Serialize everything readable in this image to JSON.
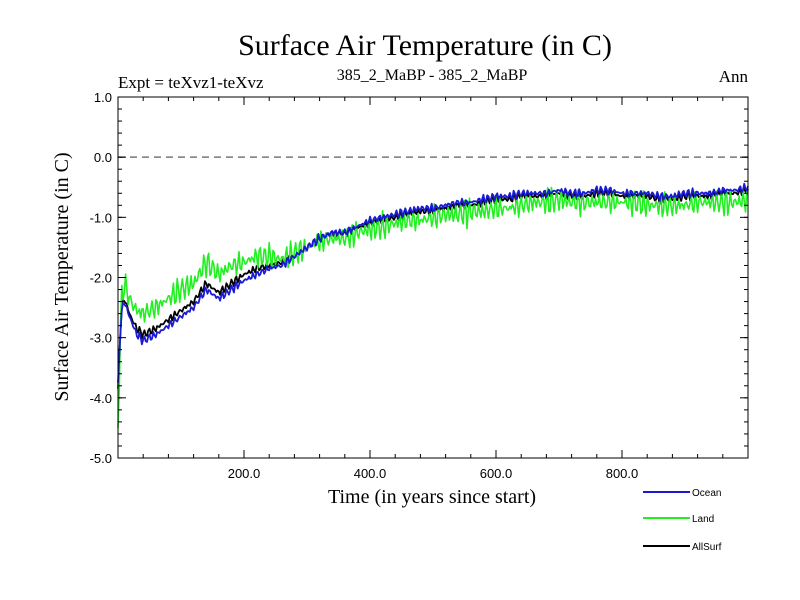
{
  "chart_data": {
    "type": "line",
    "title": "Surface Air Temperature (in C)",
    "subtitle_left": "Expt = teXvz1-teXvz",
    "subtitle_center": "385_2_MaBP - 385_2_MaBP",
    "subtitle_right": "Ann",
    "xlabel": "Time (in years since start)",
    "ylabel": "Surface Air Temperature (in C)",
    "xlim": [
      0,
      1000
    ],
    "ylim": [
      -5.0,
      1.0
    ],
    "xticks": [
      200,
      400,
      600,
      800
    ],
    "xtick_labels": [
      "200.0",
      "400.0",
      "600.0",
      "800.0"
    ],
    "yticks": [
      -5,
      -4,
      -3,
      -2,
      -1,
      0,
      1
    ],
    "ytick_labels": [
      "-5.0",
      "-4.0",
      "-3.0",
      "-2.0",
      "-1.0",
      "0.0",
      "1.0"
    ],
    "reference_line": 0.0,
    "grid": false,
    "legend_position": "bottom-right",
    "series": [
      {
        "name": "Ocean",
        "color": "#1a1ad4",
        "x": [
          0,
          5,
          10,
          20,
          30,
          40,
          50,
          60,
          80,
          100,
          120,
          140,
          160,
          180,
          200,
          220,
          240,
          260,
          280,
          300,
          320,
          340,
          360,
          380,
          400,
          420,
          440,
          460,
          480,
          500,
          520,
          540,
          560,
          580,
          600,
          620,
          640,
          660,
          680,
          700,
          720,
          740,
          760,
          780,
          800,
          820,
          840,
          860,
          880,
          900,
          920,
          940,
          960,
          980,
          1000
        ],
        "values": [
          -3.8,
          -2.6,
          -2.4,
          -2.7,
          -2.95,
          -3.05,
          -3.0,
          -2.95,
          -2.8,
          -2.65,
          -2.5,
          -2.2,
          -2.35,
          -2.2,
          -2.05,
          -1.95,
          -1.85,
          -1.8,
          -1.65,
          -1.5,
          -1.35,
          -1.25,
          -1.25,
          -1.15,
          -1.05,
          -1.0,
          -0.95,
          -0.9,
          -0.85,
          -0.85,
          -0.8,
          -0.75,
          -0.75,
          -0.7,
          -0.65,
          -0.65,
          -0.6,
          -0.6,
          -0.6,
          -0.55,
          -0.6,
          -0.6,
          -0.55,
          -0.55,
          -0.6,
          -0.6,
          -0.6,
          -0.65,
          -0.65,
          -0.6,
          -0.6,
          -0.6,
          -0.55,
          -0.55,
          -0.5
        ]
      },
      {
        "name": "Land",
        "color": "#22ee22",
        "x": [
          0,
          5,
          10,
          20,
          30,
          40,
          50,
          60,
          80,
          100,
          120,
          140,
          160,
          180,
          200,
          220,
          240,
          260,
          280,
          300,
          320,
          340,
          360,
          380,
          400,
          420,
          440,
          460,
          480,
          500,
          520,
          540,
          560,
          580,
          600,
          620,
          640,
          660,
          680,
          700,
          720,
          740,
          760,
          780,
          800,
          820,
          840,
          860,
          880,
          900,
          920,
          940,
          960,
          980,
          1000
        ],
        "values": [
          -4.5,
          -2.4,
          -2.1,
          -2.4,
          -2.55,
          -2.6,
          -2.55,
          -2.5,
          -2.35,
          -2.2,
          -2.1,
          -1.75,
          -1.95,
          -1.8,
          -1.75,
          -1.65,
          -1.65,
          -1.7,
          -1.6,
          -1.5,
          -1.4,
          -1.35,
          -1.35,
          -1.25,
          -1.2,
          -1.15,
          -1.1,
          -1.05,
          -1.05,
          -1.0,
          -0.95,
          -0.95,
          -0.9,
          -0.9,
          -0.85,
          -0.85,
          -0.8,
          -0.75,
          -0.75,
          -0.7,
          -0.75,
          -0.75,
          -0.75,
          -0.75,
          -0.75,
          -0.75,
          -0.8,
          -0.8,
          -0.8,
          -0.8,
          -0.75,
          -0.75,
          -0.75,
          -0.75,
          -0.7
        ]
      },
      {
        "name": "AllSurf",
        "color": "#000000",
        "x": [
          0,
          5,
          10,
          20,
          30,
          40,
          50,
          60,
          80,
          100,
          120,
          140,
          160,
          180,
          200,
          220,
          240,
          260,
          280,
          300,
          320,
          340,
          360,
          380,
          400,
          420,
          440,
          460,
          480,
          500,
          520,
          540,
          560,
          580,
          600,
          620,
          640,
          660,
          680,
          700,
          720,
          740,
          760,
          780,
          800,
          820,
          840,
          860,
          880,
          900,
          920,
          940,
          960,
          980,
          1000
        ],
        "values": [
          -3.9,
          -2.55,
          -2.35,
          -2.65,
          -2.85,
          -2.95,
          -2.9,
          -2.85,
          -2.7,
          -2.55,
          -2.4,
          -2.1,
          -2.25,
          -2.1,
          -1.95,
          -1.85,
          -1.8,
          -1.75,
          -1.65,
          -1.5,
          -1.35,
          -1.27,
          -1.27,
          -1.18,
          -1.1,
          -1.05,
          -1.0,
          -0.95,
          -0.9,
          -0.9,
          -0.85,
          -0.8,
          -0.8,
          -0.75,
          -0.7,
          -0.7,
          -0.65,
          -0.65,
          -0.65,
          -0.6,
          -0.65,
          -0.65,
          -0.6,
          -0.6,
          -0.65,
          -0.65,
          -0.65,
          -0.7,
          -0.7,
          -0.65,
          -0.65,
          -0.65,
          -0.6,
          -0.6,
          -0.55
        ]
      }
    ]
  }
}
